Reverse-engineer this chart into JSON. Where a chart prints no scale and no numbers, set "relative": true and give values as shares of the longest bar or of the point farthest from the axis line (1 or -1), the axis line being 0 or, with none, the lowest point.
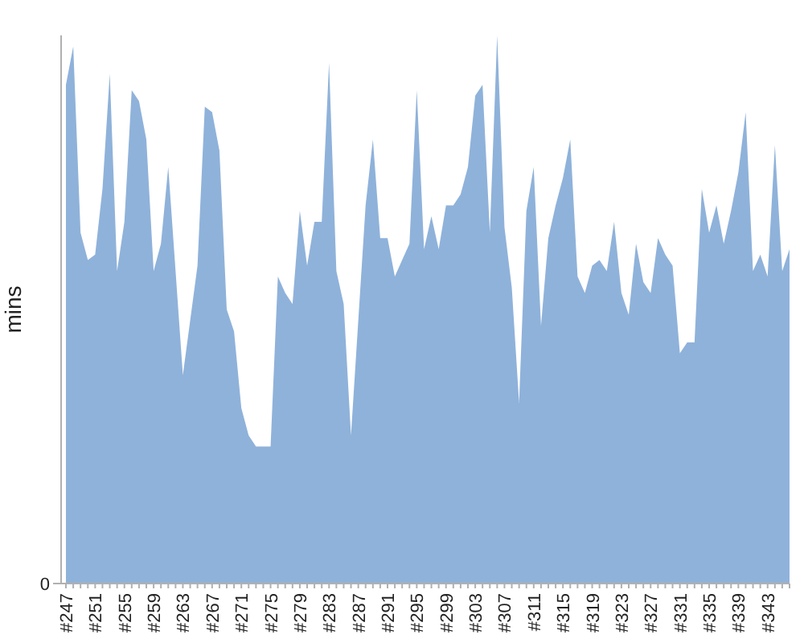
{
  "chart_data": {
    "type": "area",
    "ylabel": "mins",
    "relative": true,
    "color": "#8fb2da",
    "annotations": [
      "0"
    ],
    "categories": [
      "#247",
      null,
      null,
      null,
      "#251",
      null,
      null,
      null,
      "#255",
      null,
      null,
      null,
      "#259",
      null,
      null,
      null,
      "#263",
      null,
      null,
      null,
      "#267",
      null,
      null,
      null,
      "#271",
      null,
      null,
      null,
      "#275",
      null,
      null,
      null,
      "#279",
      null,
      null,
      null,
      "#283",
      null,
      null,
      null,
      "#287",
      null,
      null,
      null,
      "#291",
      null,
      null,
      null,
      "#295",
      null,
      null,
      null,
      "#299",
      null,
      null,
      null,
      "#303",
      null,
      null,
      null,
      "#307",
      null,
      null,
      null,
      "#311",
      null,
      null,
      null,
      "#315",
      null,
      null,
      null,
      "#319",
      null,
      null,
      null,
      "#323",
      null,
      null,
      null,
      "#327",
      null,
      null,
      null,
      "#331",
      null,
      null,
      null,
      "#335",
      null,
      null,
      null,
      "#339",
      null,
      null,
      null,
      "#343",
      null,
      null,
      null
    ],
    "values": [
      0.91,
      0.98,
      0.64,
      0.59,
      0.6,
      0.72,
      0.93,
      0.57,
      0.66,
      0.9,
      0.88,
      0.81,
      0.57,
      0.62,
      0.76,
      0.57,
      0.38,
      0.48,
      0.58,
      0.87,
      0.86,
      0.79,
      0.5,
      0.46,
      0.32,
      0.27,
      0.25,
      0.25,
      0.25,
      0.56,
      0.53,
      0.51,
      0.68,
      0.58,
      0.66,
      0.66,
      0.95,
      0.57,
      0.51,
      0.27,
      0.48,
      0.69,
      0.81,
      0.63,
      0.63,
      0.56,
      0.59,
      0.62,
      0.9,
      0.61,
      0.67,
      0.61,
      0.69,
      0.69,
      0.71,
      0.76,
      0.89,
      0.91,
      0.64,
      1,
      0.65,
      0.54,
      0.33,
      0.68,
      0.76,
      0.47,
      0.63,
      0.69,
      0.74,
      0.81,
      0.56,
      0.53,
      0.58,
      0.59,
      0.57,
      0.66,
      0.53,
      0.49,
      0.62,
      0.55,
      0.53,
      0.63,
      0.6,
      0.58,
      0.42,
      0.44,
      0.44,
      0.72,
      0.64,
      0.69,
      0.62,
      0.68,
      0.75,
      0.86,
      0.57,
      0.6,
      0.56,
      0.8,
      0.57,
      0.61
    ]
  }
}
